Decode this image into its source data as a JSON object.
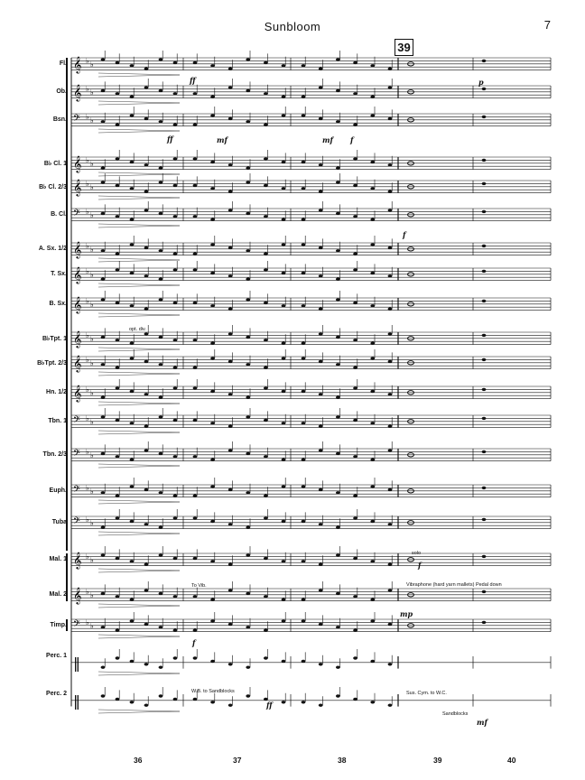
{
  "header": {
    "title": "Sunbloom",
    "page_number": "7",
    "rehearsal_mark": "39"
  },
  "instruments": [
    "Fl.",
    "Ob.",
    "Bsn.",
    "B♭ Cl. 1",
    "B♭ Cl. 2/3",
    "B. Cl.",
    "A. Sx. 1/2",
    "T. Sx.",
    "B. Sx.",
    "B♭Tpt. 1",
    "B♭Tpt. 2/3",
    "Hn. 1/2",
    "Tbn. 1",
    "Tbn. 2/3",
    "Euph.",
    "Tuba",
    "Mal. 1",
    "Mal. 2",
    "Timp.",
    "Perc. 1",
    "Perc. 2"
  ],
  "measure_numbers": [
    "36",
    "37",
    "38",
    "39",
    "40"
  ],
  "annotations": {
    "opt_div": "opt. div.",
    "to_vib": "To Vib.",
    "solo": "solo",
    "vibraphone": "Vibraphone (hard yarn mallets) Pedal down",
    "wb_to_sandblocks": "W.B. to Sandblocks",
    "sus_cym": "Sus. Cym. to W.C.",
    "sandblocks": "Sandblocks"
  },
  "dynamics": {
    "ff": "ff",
    "mf": "mf",
    "f": "f",
    "p": "p",
    "mp": "mp"
  },
  "colors": {
    "ink": "#111111",
    "paper": "#ffffff"
  }
}
